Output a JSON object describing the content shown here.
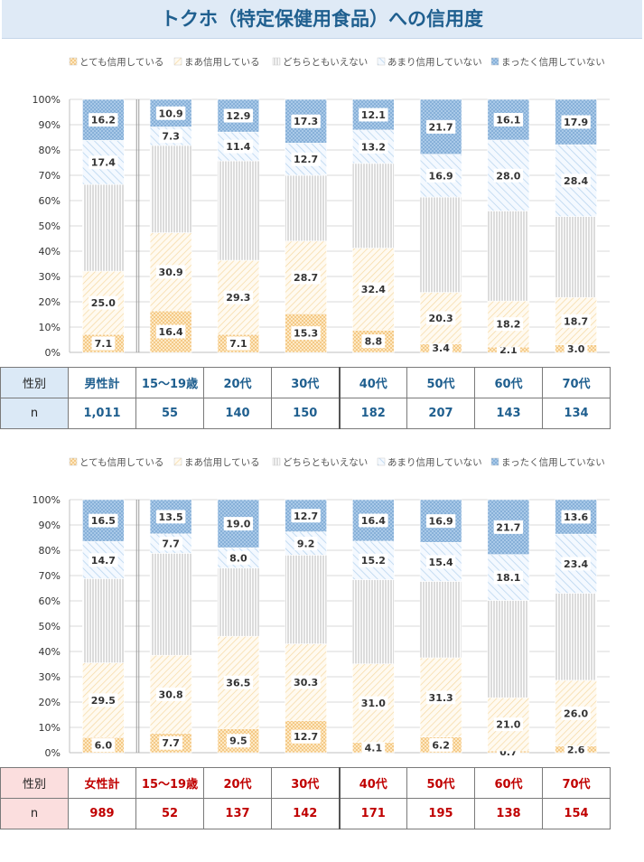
{
  "title": "トクホ（特定保健用食品）への信用度",
  "legend": [
    "とても信用している",
    "まあ信用している",
    "どちらともいえない",
    "あまり信用していない",
    "まったく信用していない"
  ],
  "y_ticks": [
    "0%",
    "10%",
    "20%",
    "30%",
    "40%",
    "50%",
    "60%",
    "70%",
    "80%",
    "90%",
    "100%"
  ],
  "male_table": {
    "header_label": "性別",
    "n_label": "n",
    "groups": [
      "男性計",
      "15～19歳",
      "20代",
      "30代",
      "40代",
      "50代",
      "60代",
      "70代"
    ],
    "n": [
      "1,011",
      "55",
      "140",
      "150",
      "182",
      "207",
      "143",
      "134"
    ]
  },
  "female_table": {
    "header_label": "性別",
    "n_label": "n",
    "groups": [
      "女性計",
      "15～19歳",
      "20代",
      "30代",
      "40代",
      "50代",
      "60代",
      "70代"
    ],
    "n": [
      "989",
      "52",
      "137",
      "142",
      "171",
      "195",
      "138",
      "154"
    ]
  },
  "chart_data": [
    {
      "type": "bar",
      "stacked": true,
      "percent": true,
      "title": "男性",
      "categories": [
        "男性計",
        "15～19歳",
        "20代",
        "30代",
        "40代",
        "50代",
        "60代",
        "70代"
      ],
      "ylim": [
        0,
        100
      ],
      "series": [
        {
          "name": "とても信用している",
          "values": [
            7.1,
            16.4,
            7.1,
            15.3,
            8.8,
            3.4,
            2.1,
            3.0
          ]
        },
        {
          "name": "まあ信用している",
          "values": [
            25.0,
            30.9,
            29.3,
            28.7,
            32.4,
            20.3,
            18.2,
            18.7
          ]
        },
        {
          "name": "どちらともいえない",
          "values": [
            34.3,
            34.5,
            39.3,
            26.0,
            33.5,
            37.7,
            35.6,
            32.0
          ]
        },
        {
          "name": "あまり信用していない",
          "values": [
            17.4,
            7.3,
            11.4,
            12.7,
            13.2,
            16.9,
            28.0,
            28.4
          ]
        },
        {
          "name": "まったく信用していない",
          "values": [
            16.2,
            10.9,
            12.9,
            17.3,
            12.1,
            21.7,
            16.1,
            17.9
          ]
        }
      ]
    },
    {
      "type": "bar",
      "stacked": true,
      "percent": true,
      "title": "女性",
      "categories": [
        "女性計",
        "15～19歳",
        "20代",
        "30代",
        "40代",
        "50代",
        "60代",
        "70代"
      ],
      "ylim": [
        0,
        100
      ],
      "series": [
        {
          "name": "とても信用している",
          "values": [
            6.0,
            7.7,
            9.5,
            12.7,
            4.1,
            6.2,
            0.7,
            2.6
          ]
        },
        {
          "name": "まあ信用している",
          "values": [
            29.5,
            30.8,
            36.5,
            30.3,
            31.0,
            31.3,
            21.0,
            26.0
          ]
        },
        {
          "name": "どちらともいえない",
          "values": [
            33.3,
            40.3,
            27.0,
            35.1,
            33.3,
            30.2,
            38.5,
            34.4
          ]
        },
        {
          "name": "あまり信用していない",
          "values": [
            14.7,
            7.7,
            8.0,
            9.2,
            15.2,
            15.4,
            18.1,
            23.4
          ]
        },
        {
          "name": "まったく信用していない",
          "values": [
            16.5,
            13.5,
            19.0,
            12.7,
            16.4,
            16.9,
            21.7,
            13.6
          ]
        }
      ]
    }
  ]
}
